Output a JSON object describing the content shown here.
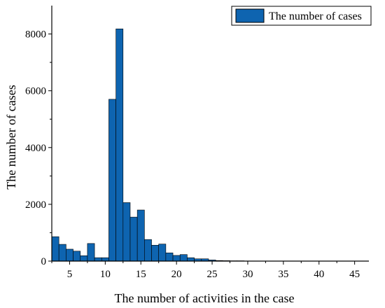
{
  "chart_data": {
    "type": "bar",
    "x": [
      3,
      4,
      5,
      6,
      7,
      8,
      9,
      10,
      11,
      12,
      13,
      14,
      15,
      16,
      17,
      18,
      19,
      20,
      21,
      22,
      23,
      24,
      25,
      26,
      27,
      28,
      29,
      30,
      31,
      32,
      33,
      34,
      35,
      36,
      37,
      38,
      39,
      40,
      41,
      42,
      43,
      44,
      45,
      46
    ],
    "series": [
      {
        "name": "The number of cases",
        "values": [
          860,
          590,
          420,
          350,
          190,
          620,
          120,
          120,
          5700,
          8180,
          2060,
          1550,
          1800,
          760,
          560,
          600,
          290,
          200,
          230,
          120,
          80,
          80,
          40,
          20,
          15,
          10,
          10,
          5,
          5,
          3,
          2,
          2,
          2,
          1,
          1,
          1,
          1,
          1,
          1,
          1,
          1,
          1,
          1,
          1
        ],
        "color": "#0e64b0"
      }
    ],
    "xlabel": "The number of activities in the case",
    "ylabel": "The number of cases",
    "xlim": [
      2.5,
      47
    ],
    "ylim": [
      0,
      9000
    ],
    "xticks": [
      5,
      10,
      15,
      20,
      25,
      30,
      35,
      40,
      45
    ],
    "yticks": [
      0,
      2000,
      4000,
      6000,
      8000
    ],
    "grid": false,
    "legend": "top-right"
  }
}
